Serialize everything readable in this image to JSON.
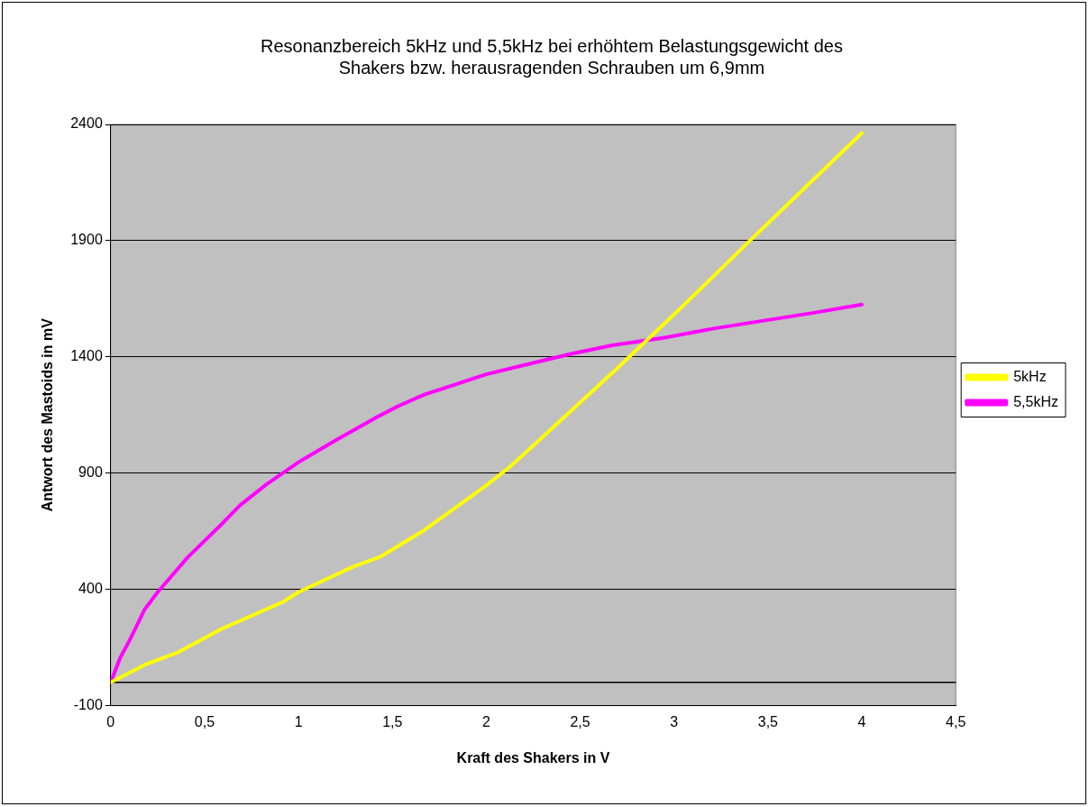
{
  "chart_data": {
    "type": "line",
    "title": [
      "Resonanzbereich 5kHz und 5,5kHz bei erhöhtem Belastungsgewicht des",
      "Shakers bzw. herausragenden Schrauben um 6,9mm"
    ],
    "xlabel": "Kraft des Shakers in V",
    "ylabel": "Antwort des Mastoids in mV",
    "xlim": [
      0,
      4.5
    ],
    "xticks": [
      0,
      {
        "value": 0.5,
        "label": "0,5"
      },
      1,
      {
        "value": 1.5,
        "label": "1,5"
      },
      2,
      {
        "value": 2.5,
        "label": "2,5"
      },
      3,
      {
        "value": 3.5,
        "label": "3,5"
      },
      4,
      {
        "value": 4.5,
        "label": "4,5"
      }
    ],
    "ylim": [
      -100,
      2400
    ],
    "yticks": [
      -100,
      400,
      900,
      1400,
      1900,
      2400
    ],
    "grid": "y",
    "legend": "right",
    "marker": "none",
    "line_style": "solid",
    "ref_lines": [
      {
        "axis": "y",
        "value": 0,
        "color": "#000000"
      }
    ],
    "series": [
      {
        "name": "5kHz",
        "color": "#ffff00",
        "x": [
          0,
          0.18,
          0.36,
          0.59,
          0.92,
          1.0,
          1.29,
          1.44,
          1.67,
          2.0,
          2.13,
          2.31,
          2.68,
          2.99,
          3.21,
          3.42,
          4.0
        ],
        "values": [
          0,
          75,
          130,
          230,
          347,
          388,
          497,
          542,
          655,
          847,
          930,
          1063,
          1338,
          1575,
          1747,
          1913,
          2363
        ]
      },
      {
        "name": "5,5kHz",
        "color": "#ff00ff",
        "x": [
          0,
          0.05,
          0.1,
          0.15,
          0.18,
          0.25,
          0.41,
          0.59,
          0.69,
          0.83,
          1.0,
          1.19,
          1.41,
          1.53,
          1.67,
          2.0,
          2.24,
          2.45,
          2.67,
          2.95,
          3.21,
          3.73,
          4.0
        ],
        "values": [
          0,
          105,
          180,
          263,
          313,
          388,
          538,
          680,
          763,
          852,
          947,
          1038,
          1138,
          1188,
          1238,
          1325,
          1372,
          1413,
          1450,
          1483,
          1522,
          1588,
          1625
        ]
      }
    ]
  }
}
